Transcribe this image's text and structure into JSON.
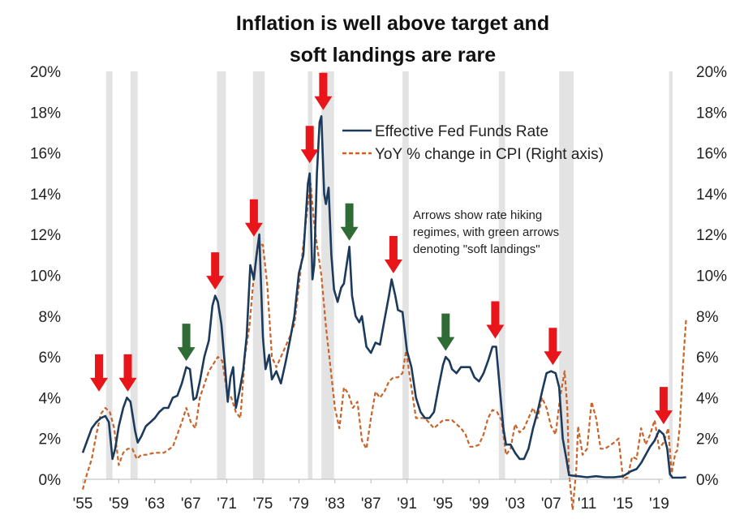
{
  "chart_data": {
    "type": "line",
    "title_lines": [
      "Inflation is well above target and",
      "soft landings are rare"
    ],
    "x_range": [
      1955,
      2022
    ],
    "x_ticks": [
      "'55",
      "'59",
      "'63",
      "'67",
      "'71",
      "'75",
      "'79",
      "'83",
      "'87",
      "'91",
      "'95",
      "'99",
      "'03",
      "'07",
      "'11",
      "'15",
      "'19"
    ],
    "x_tick_years": [
      1955,
      1959,
      1963,
      1967,
      1971,
      1975,
      1979,
      1983,
      1987,
      1991,
      1995,
      1999,
      2003,
      2007,
      2011,
      2015,
      2019
    ],
    "y_ticks_left": [
      "0%",
      "2%",
      "4%",
      "6%",
      "8%",
      "10%",
      "12%",
      "14%",
      "16%",
      "18%",
      "20%"
    ],
    "y_ticks_right": [
      "0%",
      "2%",
      "4%",
      "6%",
      "8%",
      "10%",
      "12%",
      "14%",
      "16%",
      "18%",
      "20%"
    ],
    "y_range_left": [
      0,
      20
    ],
    "y_range_right": [
      0,
      20
    ],
    "grid": false,
    "legend_position": "top-right",
    "colors": {
      "fed_funds": "#1b3a5c",
      "cpi": "#c8642a",
      "recession": "#e3e3e3",
      "red_arrow": "#e8161b",
      "green_arrow": "#2f6b35"
    },
    "recessions": [
      [
        1957.6,
        1958.3
      ],
      [
        1960.3,
        1961.1
      ],
      [
        1969.9,
        1970.9
      ],
      [
        1973.9,
        1975.2
      ],
      [
        1980.0,
        1980.5
      ],
      [
        1981.5,
        1982.9
      ],
      [
        1990.5,
        1991.2
      ],
      [
        2001.2,
        2001.9
      ],
      [
        2007.9,
        2009.5
      ],
      [
        2020.1,
        2020.5
      ]
    ],
    "series": [
      {
        "name": "Effective Fed Funds Rate",
        "axis": "left",
        "style": "solid",
        "x": [
          1955.0,
          1955.5,
          1956.0,
          1956.5,
          1957.0,
          1957.5,
          1957.9,
          1958.3,
          1958.6,
          1959.0,
          1959.5,
          1959.9,
          1960.3,
          1960.8,
          1961.1,
          1961.5,
          1962.0,
          1962.5,
          1963.0,
          1963.5,
          1964.0,
          1964.5,
          1965.0,
          1965.5,
          1966.0,
          1966.5,
          1966.9,
          1967.3,
          1967.6,
          1968.0,
          1968.5,
          1969.0,
          1969.4,
          1969.7,
          1970.0,
          1970.4,
          1970.8,
          1971.1,
          1971.4,
          1971.7,
          1972.0,
          1972.4,
          1972.8,
          1973.2,
          1973.6,
          1974.0,
          1974.3,
          1974.6,
          1975.0,
          1975.3,
          1975.7,
          1976.0,
          1976.5,
          1977.0,
          1977.5,
          1978.0,
          1978.5,
          1979.0,
          1979.5,
          1980.0,
          1980.2,
          1980.5,
          1980.7,
          1981.0,
          1981.3,
          1981.5,
          1981.8,
          1982.0,
          1982.3,
          1982.6,
          1982.9,
          1983.3,
          1983.7,
          1984.0,
          1984.3,
          1984.6,
          1984.9,
          1985.3,
          1985.7,
          1986.0,
          1986.5,
          1987.0,
          1987.5,
          1988.0,
          1988.5,
          1989.0,
          1989.3,
          1989.7,
          1990.0,
          1990.5,
          1991.0,
          1991.5,
          1992.0,
          1992.5,
          1993.0,
          1993.5,
          1994.0,
          1994.5,
          1995.0,
          1995.3,
          1995.7,
          1996.0,
          1996.5,
          1997.0,
          1997.5,
          1998.0,
          1998.5,
          1999.0,
          1999.5,
          2000.0,
          2000.5,
          2000.9,
          2001.3,
          2001.7,
          2002.0,
          2002.5,
          2003.0,
          2003.5,
          2004.0,
          2004.5,
          2005.0,
          2005.5,
          2006.0,
          2006.5,
          2007.0,
          2007.5,
          2007.9,
          2008.3,
          2008.7,
          2009.0,
          2010.0,
          2011.0,
          2012.0,
          2013.0,
          2014.0,
          2015.0,
          2015.9,
          2016.5,
          2017.0,
          2017.5,
          2018.0,
          2018.5,
          2019.0,
          2019.5,
          2019.9,
          2020.2,
          2020.5,
          2021.0,
          2021.5,
          2022.0
        ],
        "values": [
          1.3,
          1.9,
          2.5,
          2.8,
          3.0,
          3.1,
          2.8,
          1.0,
          1.5,
          2.6,
          3.5,
          4.0,
          3.8,
          2.4,
          1.8,
          2.1,
          2.6,
          2.8,
          3.0,
          3.3,
          3.5,
          3.5,
          4.0,
          4.1,
          4.7,
          5.5,
          5.4,
          3.9,
          4.0,
          4.8,
          6.0,
          6.8,
          8.5,
          9.0,
          8.7,
          7.6,
          5.5,
          3.8,
          5.0,
          5.5,
          3.5,
          4.3,
          5.3,
          7.0,
          10.5,
          9.8,
          11.0,
          12.0,
          7.0,
          5.4,
          6.1,
          4.9,
          5.3,
          4.7,
          5.7,
          6.8,
          8.0,
          10.1,
          11.0,
          14.5,
          15.0,
          9.8,
          10.5,
          15.0,
          17.5,
          17.8,
          14.0,
          13.5,
          14.3,
          11.0,
          9.3,
          8.7,
          9.4,
          9.6,
          10.5,
          11.4,
          9.0,
          8.0,
          7.7,
          8.0,
          6.5,
          6.2,
          6.7,
          6.6,
          7.8,
          9.0,
          9.8,
          9.0,
          8.3,
          8.2,
          6.3,
          5.5,
          4.0,
          3.3,
          3.0,
          3.0,
          3.3,
          4.5,
          5.6,
          6.0,
          5.8,
          5.4,
          5.2,
          5.5,
          5.5,
          5.5,
          5.0,
          4.8,
          5.2,
          5.8,
          6.5,
          6.5,
          4.5,
          2.5,
          1.7,
          1.7,
          1.3,
          1.0,
          1.0,
          1.5,
          2.5,
          3.3,
          4.3,
          5.2,
          5.3,
          5.2,
          4.5,
          2.0,
          1.0,
          0.2,
          0.15,
          0.1,
          0.15,
          0.1,
          0.1,
          0.15,
          0.4,
          0.5,
          0.8,
          1.2,
          1.6,
          1.9,
          2.4,
          2.2,
          1.5,
          0.25,
          0.08,
          0.08,
          0.08,
          0.1
        ]
      },
      {
        "name": "YoY % change in CPI (Right axis)",
        "axis": "right",
        "style": "dashed",
        "x": [
          1955.0,
          1955.5,
          1956.0,
          1956.5,
          1957.0,
          1957.5,
          1958.0,
          1958.5,
          1959.0,
          1959.5,
          1960.0,
          1960.5,
          1961.0,
          1961.5,
          1962.0,
          1963.0,
          1964.0,
          1965.0,
          1966.0,
          1966.5,
          1967.0,
          1967.5,
          1968.0,
          1969.0,
          1970.0,
          1970.5,
          1971.0,
          1971.5,
          1972.0,
          1972.5,
          1973.0,
          1973.5,
          1974.0,
          1974.5,
          1975.0,
          1975.5,
          1976.0,
          1976.5,
          1977.0,
          1977.5,
          1978.0,
          1978.5,
          1979.0,
          1979.5,
          1980.0,
          1980.3,
          1980.7,
          1981.0,
          1981.5,
          1982.0,
          1982.5,
          1983.0,
          1983.5,
          1984.0,
          1984.5,
          1985.0,
          1985.5,
          1986.0,
          1986.5,
          1987.0,
          1987.5,
          1988.0,
          1988.5,
          1989.0,
          1989.5,
          1990.0,
          1990.5,
          1990.9,
          1991.5,
          1992.0,
          1992.5,
          1993.0,
          1994.0,
          1995.0,
          1996.0,
          1997.0,
          1997.5,
          1998.0,
          1998.5,
          1999.0,
          1999.5,
          2000.0,
          2000.5,
          2001.0,
          2001.5,
          2002.0,
          2002.5,
          2003.0,
          2003.5,
          2004.0,
          2004.5,
          2005.0,
          2005.5,
          2006.0,
          2006.5,
          2007.0,
          2007.5,
          2008.0,
          2008.5,
          2008.8,
          2009.0,
          2009.4,
          2009.8,
          2010.0,
          2010.5,
          2011.0,
          2011.5,
          2012.0,
          2012.5,
          2013.0,
          2014.0,
          2014.5,
          2015.0,
          2015.5,
          2016.0,
          2016.5,
          2017.0,
          2017.5,
          2018.0,
          2018.5,
          2019.0,
          2019.5,
          2020.0,
          2020.4,
          2020.8,
          2021.0,
          2021.3,
          2021.6,
          2022.0
        ],
        "values": [
          -0.5,
          0.3,
          1.0,
          2.2,
          3.2,
          3.5,
          3.3,
          2.5,
          0.7,
          1.3,
          1.5,
          1.5,
          1.0,
          1.2,
          1.2,
          1.3,
          1.3,
          1.6,
          2.8,
          3.5,
          2.8,
          2.5,
          4.0,
          5.3,
          6.0,
          5.8,
          4.3,
          4.0,
          3.3,
          3.0,
          6.0,
          7.5,
          10.0,
          11.5,
          11.5,
          9.5,
          6.0,
          5.5,
          6.0,
          6.5,
          7.0,
          7.6,
          9.5,
          11.5,
          13.5,
          14.5,
          12.5,
          11.5,
          10.0,
          7.5,
          5.5,
          3.5,
          2.5,
          4.5,
          4.2,
          3.5,
          3.8,
          1.9,
          1.5,
          3.0,
          4.3,
          4.0,
          4.3,
          4.8,
          5.0,
          5.0,
          5.2,
          6.3,
          4.5,
          3.0,
          3.0,
          3.0,
          2.5,
          2.9,
          2.9,
          2.5,
          2.2,
          1.6,
          1.6,
          1.7,
          2.2,
          3.0,
          3.4,
          3.3,
          2.9,
          1.2,
          1.5,
          2.7,
          2.3,
          2.5,
          3.0,
          3.5,
          3.0,
          4.0,
          3.5,
          2.6,
          2.2,
          4.0,
          5.3,
          3.5,
          0.3,
          -1.5,
          0.5,
          2.6,
          1.2,
          1.5,
          3.8,
          3.0,
          1.5,
          1.5,
          1.8,
          2.0,
          0.0,
          0.1,
          1.1,
          1.0,
          2.5,
          1.7,
          2.2,
          2.9,
          1.5,
          1.8,
          2.5,
          0.3,
          1.3,
          1.4,
          2.6,
          5.3,
          7.9
        ]
      }
    ],
    "arrows": [
      {
        "type": "red",
        "year": 1956.8,
        "value": 4.3
      },
      {
        "type": "red",
        "year": 1960.0,
        "value": 4.3
      },
      {
        "type": "green",
        "year": 1966.5,
        "value": 5.8
      },
      {
        "type": "red",
        "year": 1969.7,
        "value": 9.3
      },
      {
        "type": "red",
        "year": 1974.0,
        "value": 11.9
      },
      {
        "type": "red",
        "year": 1980.2,
        "value": 15.5
      },
      {
        "type": "red",
        "year": 1981.7,
        "value": 18.1
      },
      {
        "type": "green",
        "year": 1984.6,
        "value": 11.7
      },
      {
        "type": "red",
        "year": 1989.5,
        "value": 10.1
      },
      {
        "type": "green",
        "year": 1995.3,
        "value": 6.3
      },
      {
        "type": "red",
        "year": 2000.8,
        "value": 6.9
      },
      {
        "type": "red",
        "year": 2007.2,
        "value": 5.6
      },
      {
        "type": "red",
        "year": 2019.5,
        "value": 2.7
      }
    ],
    "annotation_lines": [
      "Arrows show rate hiking",
      "regimes, with green arrows",
      "denoting \"soft landings\""
    ]
  }
}
